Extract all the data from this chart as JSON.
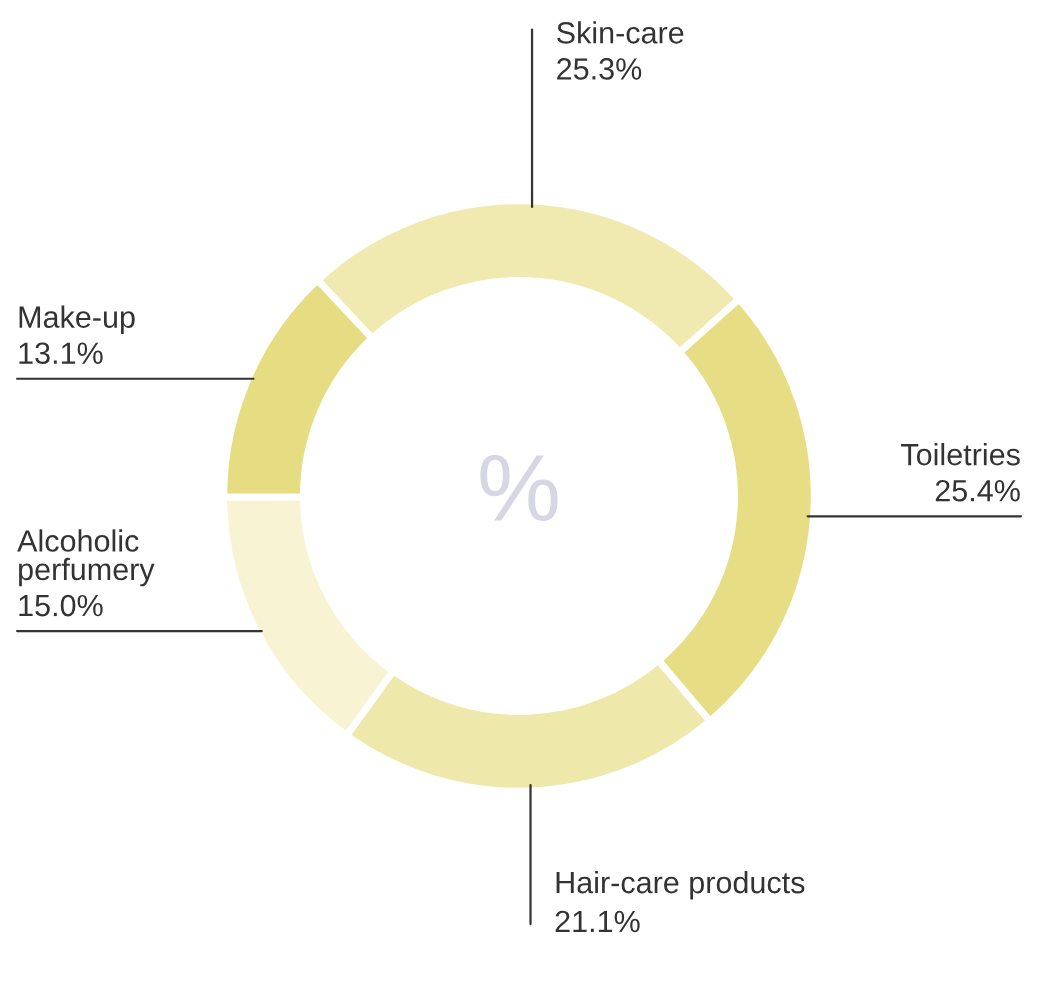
{
  "chart_data": {
    "type": "donut",
    "categories": [
      "Skin-care",
      "Toiletries",
      "Hair-care products",
      "Alcoholic\nperfumery",
      "Make-up"
    ],
    "values": [
      25.3,
      25.4,
      21.1,
      15.0,
      13.1
    ],
    "colors": [
      "#f0eab0",
      "#e6dd85",
      "#eee8ab",
      "#f7f3d3",
      "#e6dd83"
    ],
    "value_labels": [
      "25.3%",
      "25.4%",
      "21.1%",
      "15.0%",
      "13.1%"
    ],
    "annotations": [
      "%"
    ],
    "legend": false
  }
}
